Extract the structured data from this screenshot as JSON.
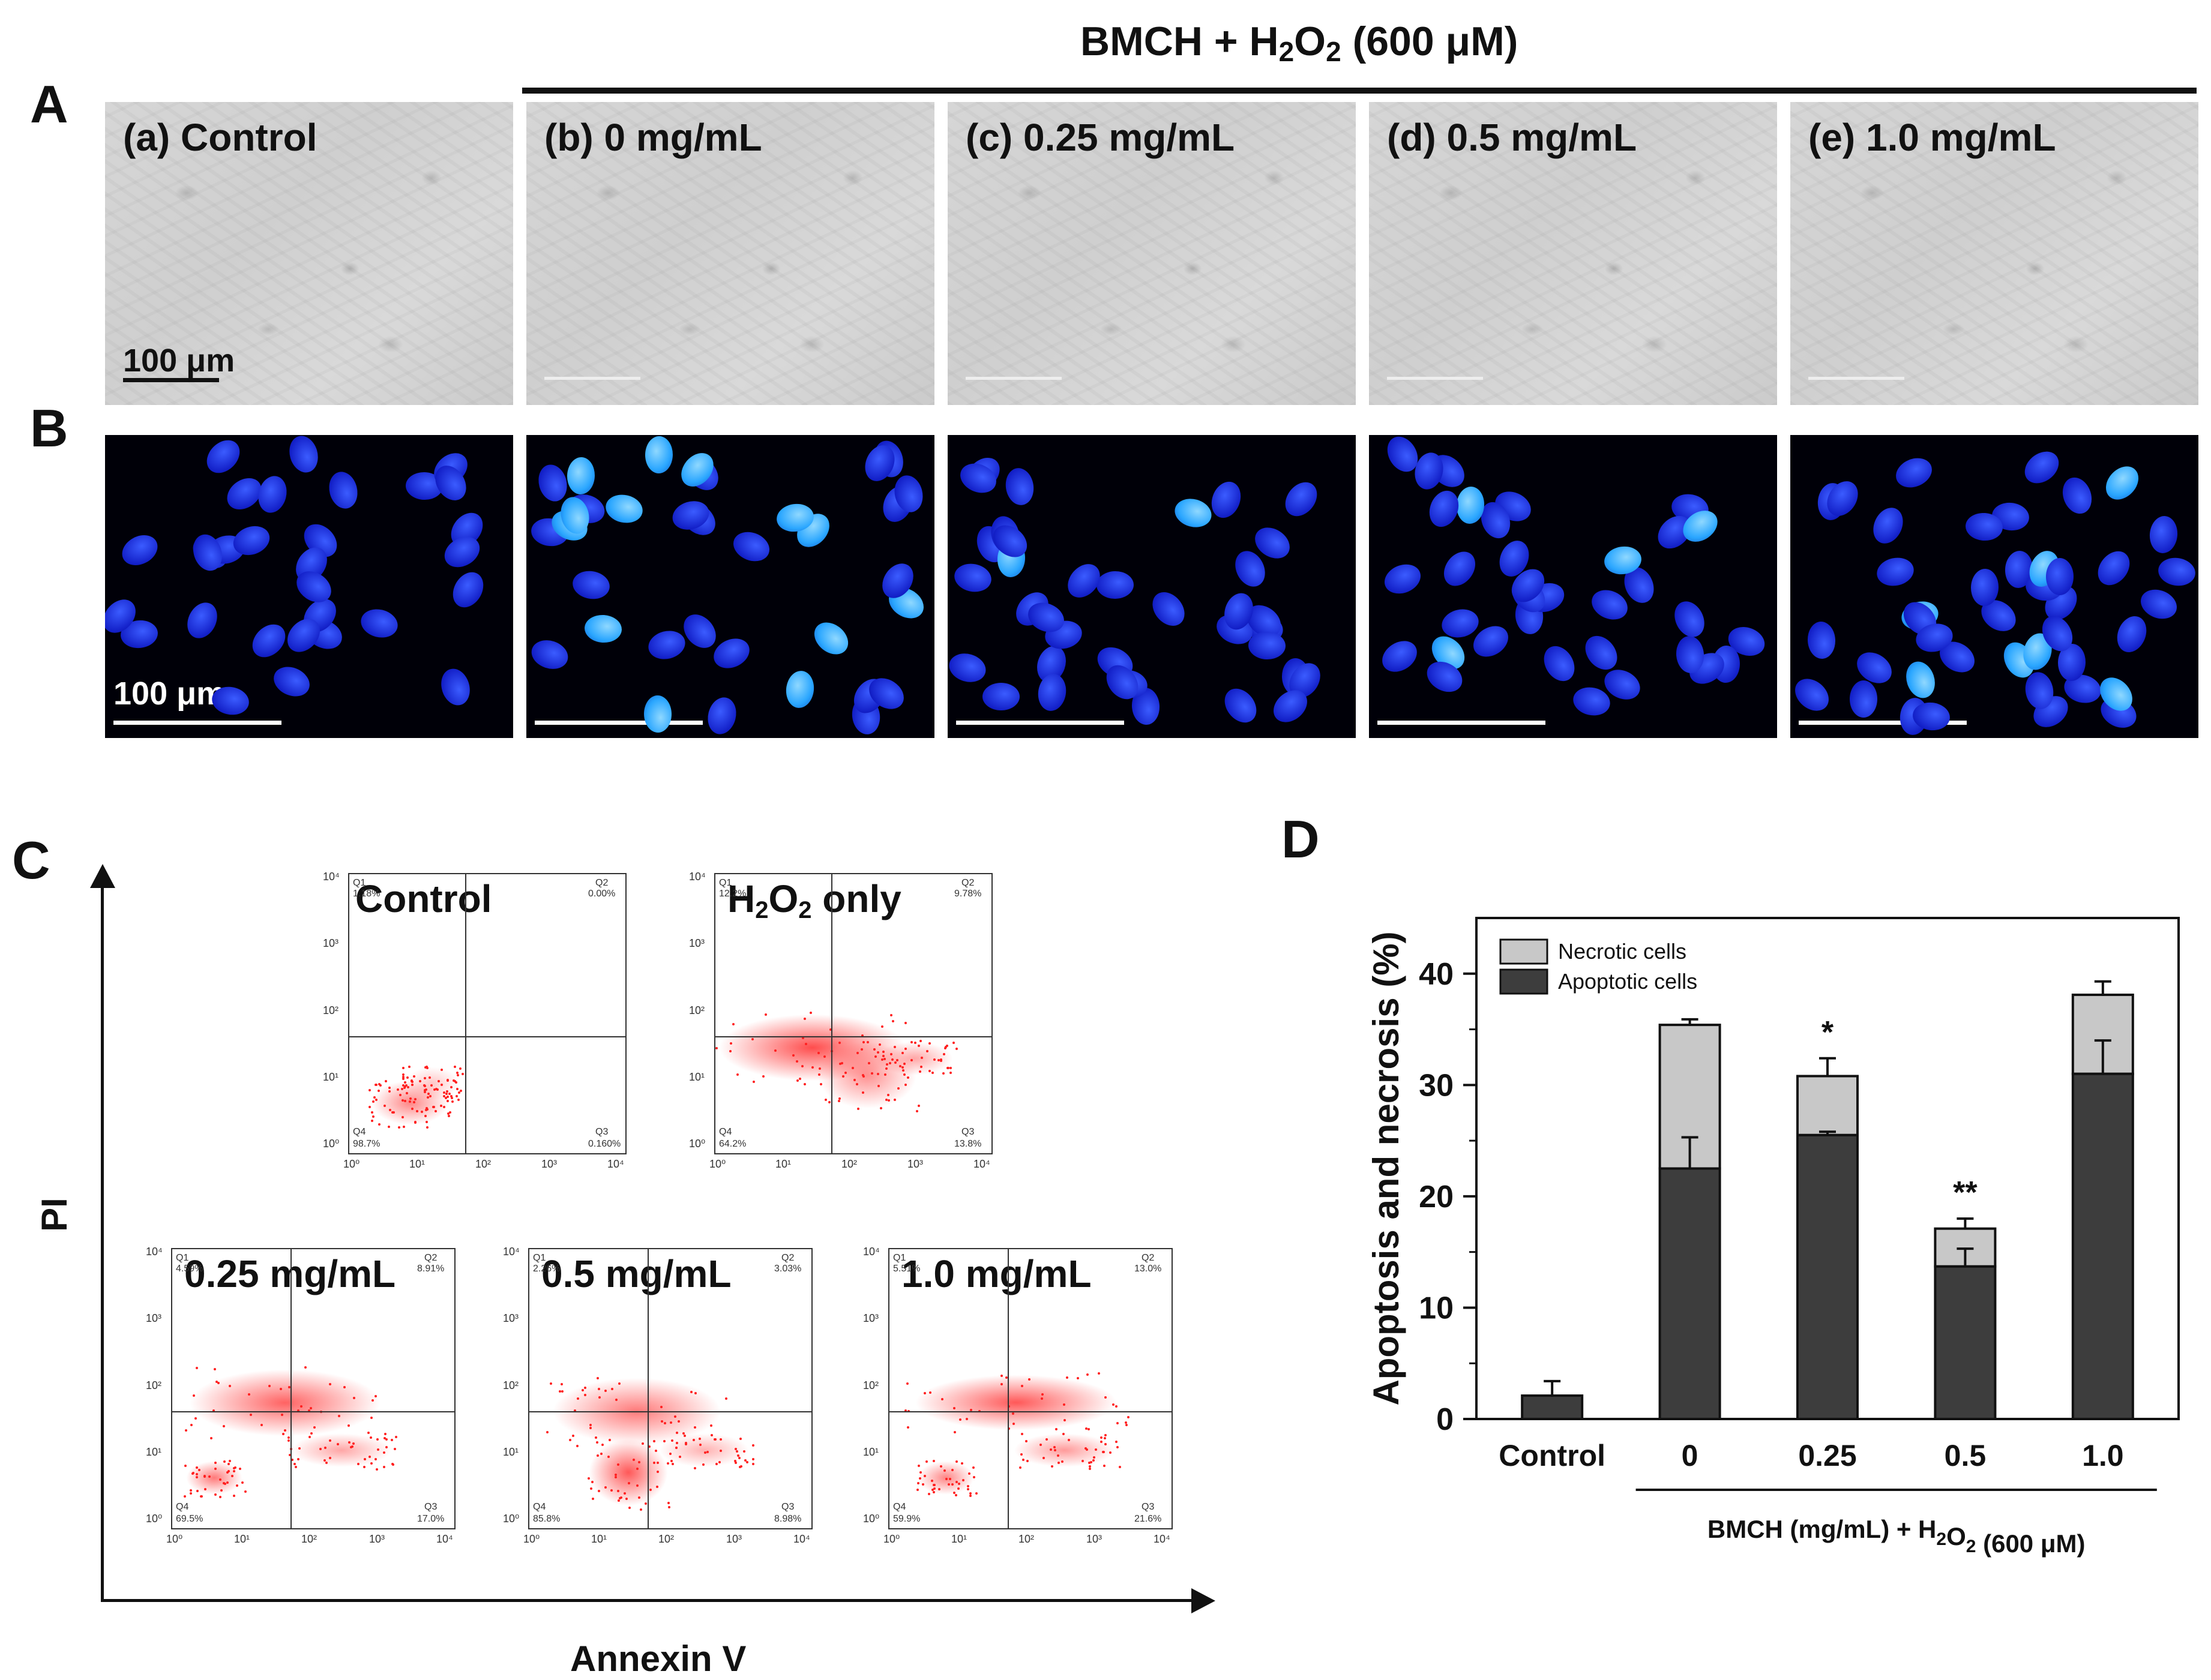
{
  "header": {
    "treatment_label_pre": "BMCH + H",
    "treatment_sub1": "2",
    "treatment_mid": "O",
    "treatment_sub2": "2",
    "treatment_post": " (600 μM)"
  },
  "panel_letters": {
    "A": "A",
    "B": "B",
    "C": "C",
    "D": "D"
  },
  "panel_A": {
    "labels": [
      "(a) Control",
      "(b) 0 mg/mL",
      "(c) 0.25 mg/mL",
      "(d) 0.5 mg/mL",
      "(e) 1.0 mg/mL"
    ],
    "scale_text": "100 μm"
  },
  "panel_B": {
    "scale_text": "100 μm"
  },
  "panel_C": {
    "y_axis": "PI",
    "x_axis": "Annexin V",
    "y_ticks": [
      "10⁴",
      "10³",
      "10²",
      "10¹",
      "10⁰"
    ],
    "x_ticks": [
      "10⁰",
      "10¹",
      "10²",
      "10³",
      "10⁴"
    ],
    "plots": [
      {
        "title": "Control",
        "q1": "Q1",
        "q1v": "1.18%",
        "q2": "Q2",
        "q2v": "0.00%",
        "q3": "Q3",
        "q3v": "0.160%",
        "q4": "Q4",
        "q4v": "98.7%"
      },
      {
        "title_pre": "H",
        "title_sub1": "2",
        "title_mid": "O",
        "title_sub2": "2",
        "title_post": " only",
        "q1": "Q1",
        "q1v": "12.2%",
        "q2": "Q2",
        "q2v": "9.78%",
        "q3": "Q3",
        "q3v": "13.8%",
        "q4": "Q4",
        "q4v": "64.2%"
      },
      {
        "title": "0.25 mg/mL",
        "q1": "Q1",
        "q1v": "4.59%",
        "q2": "Q2",
        "q2v": "8.91%",
        "q3": "Q3",
        "q3v": "17.0%",
        "q4": "Q4",
        "q4v": "69.5%"
      },
      {
        "title": "0.5 mg/mL",
        "q1": "Q1",
        "q1v": "2.26%",
        "q2": "Q2",
        "q2v": "3.03%",
        "q3": "Q3",
        "q3v": "8.98%",
        "q4": "Q4",
        "q4v": "85.8%"
      },
      {
        "title": "1.0 mg/mL",
        "q1": "Q1",
        "q1v": "5.51%",
        "q2": "Q2",
        "q2v": "13.0%",
        "q3": "Q3",
        "q3v": "21.6%",
        "q4": "Q4",
        "q4v": "59.9%"
      }
    ]
  },
  "colors": {
    "apoptotic": "#3d3d3d",
    "necrotic": "#c8c8c8",
    "flow_dots": "#ff2020",
    "nucleus": "#1a2de0"
  },
  "chart_data": {
    "type": "bar",
    "stacked": true,
    "categories": [
      "Control",
      "0",
      "0.25",
      "0.5",
      "1.0"
    ],
    "series": [
      {
        "name": "Apoptotic cells",
        "values": [
          2.1,
          22.5,
          25.5,
          13.7,
          31.0
        ],
        "errors": [
          1.3,
          2.8,
          0.3,
          1.6,
          3.0
        ]
      },
      {
        "name": "Necrotic cells",
        "values": [
          0.0,
          12.9,
          5.3,
          3.4,
          7.1
        ],
        "errors": [
          0.0,
          0.5,
          1.6,
          0.9,
          1.2
        ]
      }
    ],
    "annotations": [
      "",
      "",
      "*",
      "**",
      ""
    ],
    "ylabel": "Apoptosis and necrosis (%)",
    "ylim": [
      0,
      45
    ],
    "yticks": [
      0,
      10,
      20,
      30,
      40
    ],
    "group_label_pre": "BMCH (mg/mL) + H",
    "group_label_sub1": "2",
    "group_label_mid": "O",
    "group_label_sub2": "2",
    "group_label_post": " (600 μM)",
    "legend_position": "top-left"
  }
}
